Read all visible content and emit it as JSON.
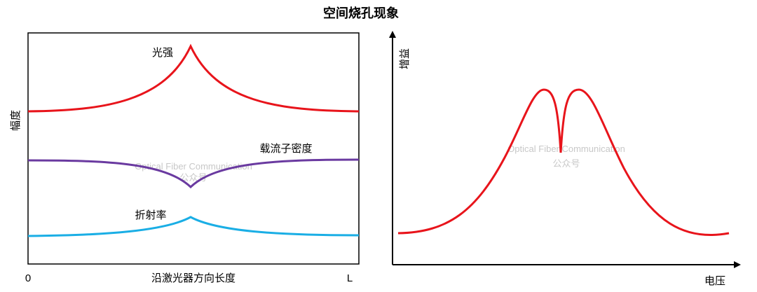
{
  "title": "空间烧孔现象",
  "left_panel": {
    "ylabel": "幅度",
    "xlabel": "沿激光器方向长度",
    "x_start": "0",
    "x_end": "L",
    "curves": [
      {
        "label": "光强",
        "color": "#e8141b"
      },
      {
        "label": "载流子密度",
        "color": "#6a3aa0"
      },
      {
        "label": "折射率",
        "color": "#1aaee5"
      }
    ]
  },
  "right_panel": {
    "ylabel": "增益",
    "xlabel": "电压",
    "curve_color": "#e8141b"
  },
  "watermark": {
    "line1": "Optical Fiber Communication",
    "line2": "公众号"
  }
}
